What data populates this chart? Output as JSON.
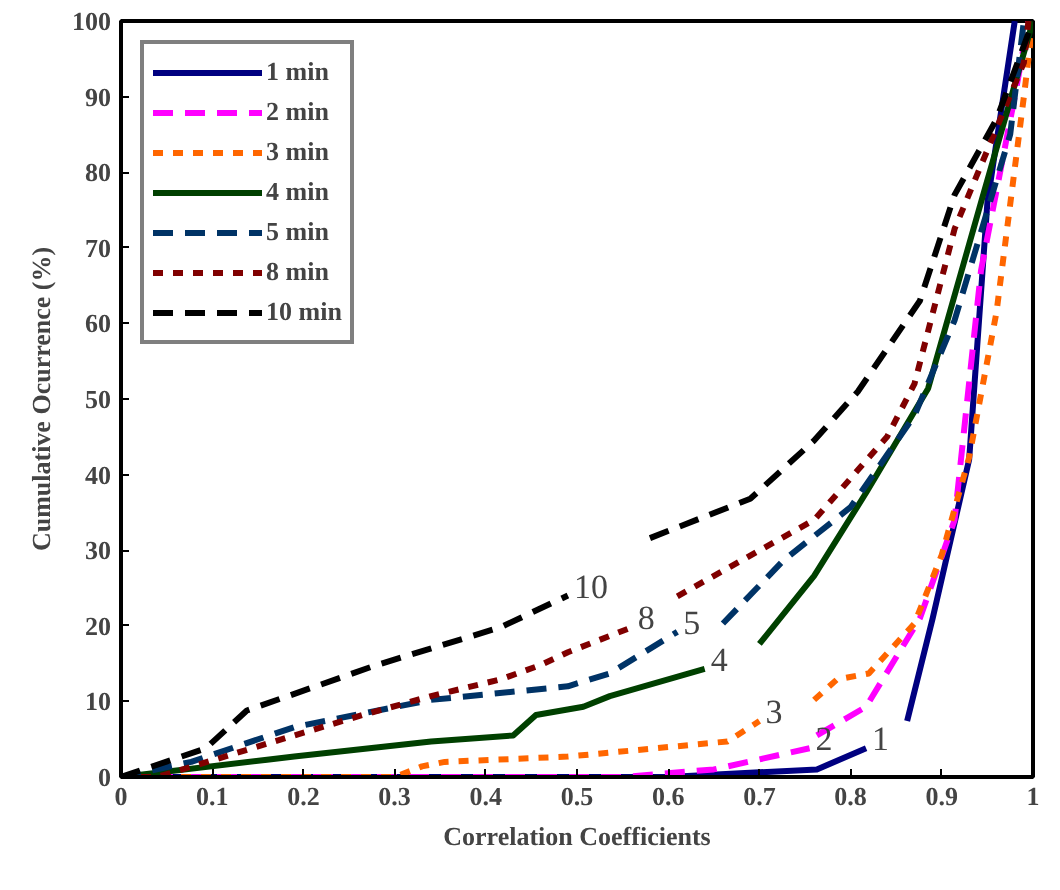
{
  "chart_data": {
    "type": "line",
    "xlabel": "Correlation Coefficients",
    "ylabel": "Cumulative Ocurrence (%)",
    "xlim": [
      0,
      1
    ],
    "ylim": [
      0,
      100
    ],
    "xticks": [
      0,
      0.1,
      0.2,
      0.3,
      0.4,
      0.5,
      0.6,
      0.7,
      0.8,
      0.9,
      1
    ],
    "yticks": [
      0,
      10,
      20,
      30,
      40,
      50,
      60,
      70,
      80,
      90,
      100
    ],
    "grid": false,
    "legend": "top left",
    "series": [
      {
        "name": "1 min",
        "color": "#000080",
        "line_style": "solid",
        "x": [
          0,
          0.6,
          0.763,
          0.817,
          0.84,
          0.862,
          0.89,
          0.93,
          0.95,
          0.98
        ],
        "values": [
          0,
          0,
          1,
          3.8,
          null,
          7.4,
          21,
          42,
          76,
          100
        ]
      },
      {
        "name": "2 min",
        "color": "#ff00ff",
        "line_style": "dashed",
        "x": [
          0,
          0.55,
          0.65,
          0.755,
          0.759,
          0.763,
          0.817,
          0.876,
          0.914,
          0.943,
          0.98,
          0.995
        ],
        "values": [
          0,
          0,
          1,
          3.8,
          null,
          5.5,
          9.3,
          21,
          34,
          67,
          90,
          100
        ]
      },
      {
        "name": "3 min",
        "color": "#ff6600",
        "line_style": "dotted",
        "x": [
          0,
          0.3,
          0.33,
          0.355,
          0.49,
          0.665,
          0.7,
          0.73,
          0.76,
          0.785,
          0.82,
          0.87,
          0.9,
          0.93,
          0.96,
          0.99,
          1
        ],
        "values": [
          0,
          0,
          1.4,
          2,
          2.7,
          4.7,
          7.4,
          null,
          10.2,
          12.9,
          13.7,
          20.3,
          29.4,
          42.3,
          61.5,
          90,
          100
        ]
      },
      {
        "name": "4 min",
        "color": "#004000",
        "line_style": "solid",
        "x": [
          0,
          0.19,
          0.34,
          0.43,
          0.455,
          0.507,
          0.536,
          0.64,
          0.67,
          0.7,
          0.76,
          0.817,
          0.885,
          0.943,
          1
        ],
        "values": [
          0,
          2.7,
          4.7,
          5.5,
          8.2,
          9.3,
          10.7,
          14.3,
          null,
          17.6,
          26.6,
          37.6,
          51.4,
          76,
          100
        ]
      },
      {
        "name": "5 min",
        "color": "#003366",
        "line_style": "dashed",
        "x": [
          0,
          0.077,
          0.19,
          0.34,
          0.49,
          0.536,
          0.61,
          0.635,
          0.66,
          0.726,
          0.8,
          0.87,
          0.914,
          0.975,
          0.99
        ],
        "values": [
          0,
          2,
          6.6,
          10.2,
          12,
          13.7,
          19.2,
          null,
          20.3,
          28.6,
          35.7,
          47.8,
          60.4,
          85,
          100
        ]
      },
      {
        "name": "8 min",
        "color": "#800000",
        "line_style": "dotted",
        "x": [
          0,
          0.04,
          0.19,
          0.265,
          0.34,
          0.416,
          0.46,
          0.49,
          0.56,
          0.585,
          0.61,
          0.76,
          0.84,
          0.87,
          0.914,
          0.99,
          0.995
        ],
        "values": [
          0,
          0,
          5.5,
          8.2,
          10.7,
          12.9,
          14.8,
          16.5,
          19.8,
          null,
          23.9,
          34,
          45,
          52,
          72.5,
          94.5,
          100
        ]
      },
      {
        "name": "10 min",
        "color": "#000000",
        "line_style": "dashed",
        "x": [
          0,
          0.093,
          0.138,
          0.28,
          0.416,
          0.49,
          0.53,
          0.58,
          0.69,
          0.76,
          0.808,
          0.876,
          0.914,
          0.96,
          1
        ],
        "values": [
          0,
          3.8,
          8.8,
          14.8,
          19.8,
          24,
          null,
          31.6,
          36.8,
          44.5,
          51,
          63,
          77,
          87,
          100
        ]
      }
    ],
    "annotations": [
      {
        "text": "10",
        "x": 0.49,
        "y": 24
      },
      {
        "text": "8",
        "x": 0.56,
        "y": 19.8
      },
      {
        "text": "5",
        "x": 0.61,
        "y": 19.2
      },
      {
        "text": "4",
        "x": 0.64,
        "y": 14.3
      },
      {
        "text": "3",
        "x": 0.7,
        "y": 7.4
      },
      {
        "text": "2",
        "x": 0.755,
        "y": 3.8
      },
      {
        "text": "1",
        "x": 0.817,
        "y": 3.8
      }
    ]
  }
}
